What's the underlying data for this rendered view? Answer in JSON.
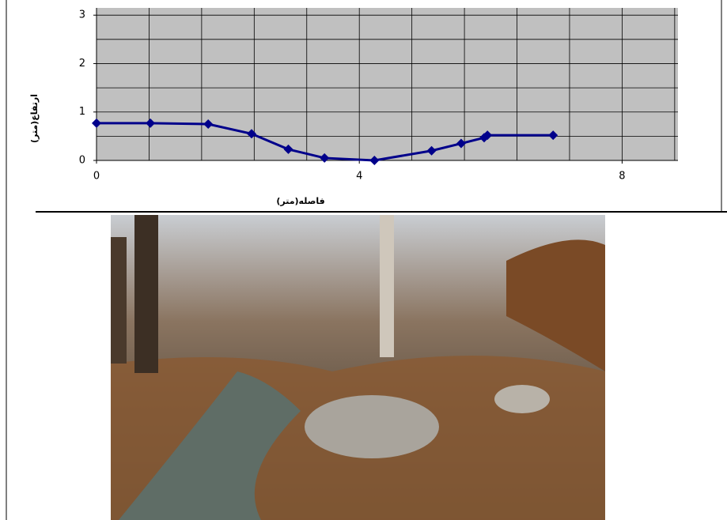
{
  "chart_data": {
    "type": "line",
    "x_label": "فاصله(متر)",
    "y_label": "ارتفاع(متر)",
    "x": [
      0,
      0.82,
      1.7,
      2.36,
      2.92,
      3.47,
      4.23,
      5.1,
      5.55,
      5.9,
      5.95,
      6.95
    ],
    "series": [
      {
        "color": "#00008b",
        "values": [
          0.77,
          0.77,
          0.75,
          0.55,
          0.23,
          0.05,
          0.0,
          0.2,
          0.35,
          0.47,
          0.52,
          0.52
        ]
      }
    ],
    "xlim": [
      0,
      8.85
    ],
    "ylim": [
      0,
      3.15
    ],
    "xticks": [
      0,
      4,
      8
    ],
    "yticks": [
      0,
      1,
      2,
      3
    ],
    "x_gridlines": [
      0.8,
      1.6,
      2.4,
      3.2,
      4,
      4.8,
      5.6,
      6.4,
      7.2,
      8,
      8.8
    ],
    "y_gridlines": [
      0.5,
      1,
      1.5,
      2,
      2.5,
      3
    ],
    "grid": true,
    "plot_background": "#c0c0c0"
  }
}
